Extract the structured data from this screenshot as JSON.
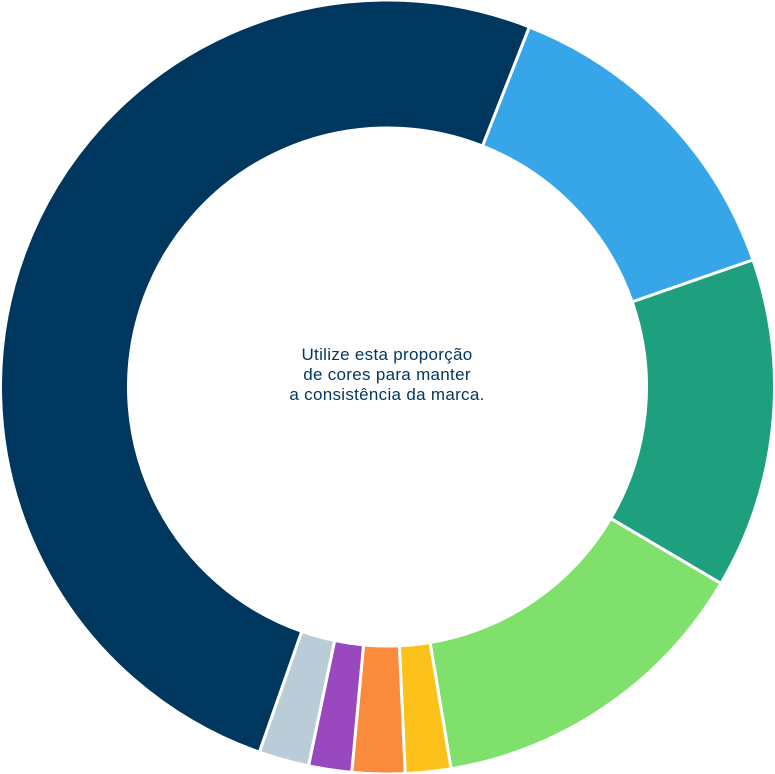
{
  "caption": {
    "lines": [
      "Utilize esta proporção",
      "de cores para manter",
      "a consistência da marca."
    ]
  },
  "chart_data": {
    "type": "pie",
    "donut": true,
    "categories": [
      "",
      "",
      "",
      "",
      "",
      "",
      "",
      ""
    ],
    "values": [
      13.7,
      13.8,
      13.9,
      1.9,
      2.2,
      1.8,
      2.1,
      50.6
    ],
    "colors": [
      "#36a6e8",
      "#1ea07f",
      "#80e06c",
      "#fcc21b",
      "#fa8a3c",
      "#9a48c0",
      "#b9ccd7",
      "#00375f"
    ],
    "start_angle_deg": 21.5,
    "direction": "clockwise",
    "title": "",
    "legend": "none"
  }
}
